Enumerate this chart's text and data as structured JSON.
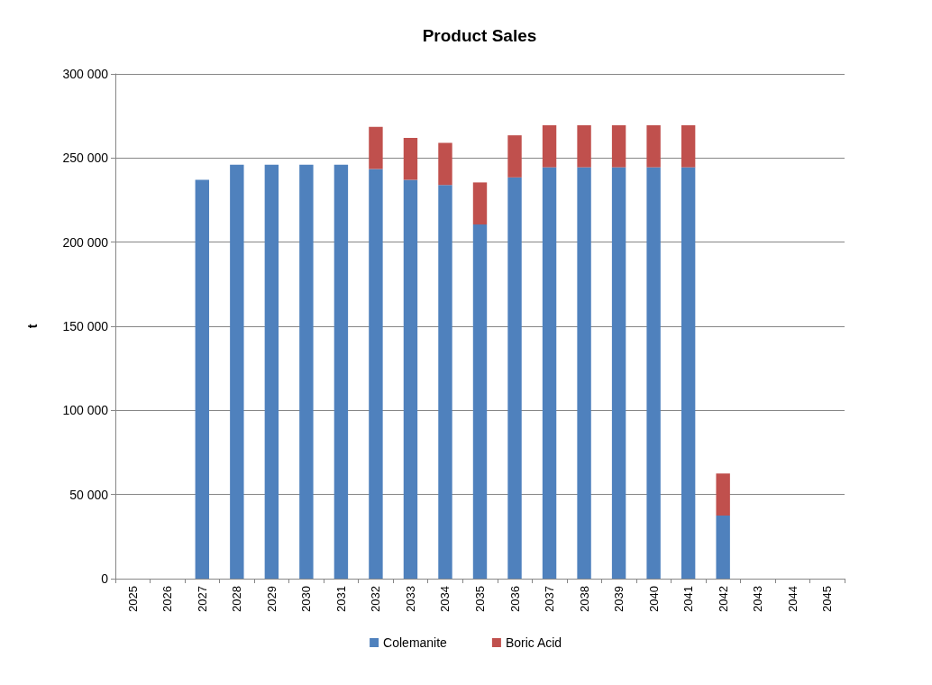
{
  "chart_data": {
    "type": "bar",
    "title": "Product Sales",
    "ylabel": "t",
    "stacked": true,
    "categories": [
      "2025",
      "2026",
      "2027",
      "2028",
      "2029",
      "2030",
      "2031",
      "2032",
      "2033",
      "2034",
      "2035",
      "2036",
      "2037",
      "2038",
      "2039",
      "2040",
      "2041",
      "2042",
      "2043",
      "2044",
      "2045"
    ],
    "series": [
      {
        "name": "Colemanite",
        "color": "#4f81bd",
        "values": [
          null,
          null,
          237000,
          246000,
          246000,
          246000,
          246000,
          243500,
          237000,
          234000,
          210500,
          238500,
          244500,
          244500,
          244500,
          244500,
          244500,
          37500,
          null,
          null,
          null
        ]
      },
      {
        "name": "Boric Acid",
        "color": "#c0504d",
        "values": [
          null,
          null,
          null,
          null,
          null,
          null,
          null,
          25000,
          25000,
          25000,
          25000,
          25000,
          25000,
          25000,
          25000,
          25000,
          25000,
          25000,
          null,
          null,
          null
        ]
      }
    ],
    "ylim": [
      0,
      300000
    ],
    "yticks": [
      0,
      50000,
      100000,
      150000,
      200000,
      250000,
      300000
    ],
    "grid": "y",
    "legend": "bottom"
  }
}
